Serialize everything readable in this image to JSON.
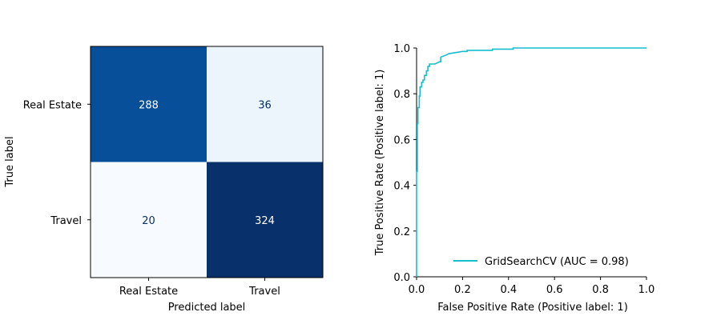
{
  "chart_data": [
    {
      "type": "heatmap",
      "xlabel": "Predicted label",
      "ylabel": "True label",
      "x_categories": [
        "Real Estate",
        "Travel"
      ],
      "y_categories": [
        "Real Estate",
        "Travel"
      ],
      "values": [
        [
          288,
          36
        ],
        [
          20,
          324
        ]
      ],
      "colormap": "Blues",
      "colorbar": false
    },
    {
      "type": "line",
      "xlabel": "False Positive Rate (Positive label: 1)",
      "ylabel": "True Positive Rate (Positive label: 1)",
      "xlim": [
        0,
        1
      ],
      "ylim": [
        0,
        1
      ],
      "xticks": [
        "0.0",
        "0.2",
        "0.4",
        "0.6",
        "0.8",
        "1.0"
      ],
      "yticks": [
        "0.0",
        "0.2",
        "0.4",
        "0.6",
        "0.8",
        "1.0"
      ],
      "grid": false,
      "legend_position": "lower-right",
      "series": [
        {
          "name": "GridSearchCV (AUC = 0.98)",
          "color": "#17becf",
          "x": [
            0.0,
            0.0,
            0.003,
            0.003,
            0.006,
            0.006,
            0.012,
            0.012,
            0.015,
            0.015,
            0.022,
            0.022,
            0.028,
            0.028,
            0.034,
            0.034,
            0.043,
            0.043,
            0.049,
            0.049,
            0.056,
            0.056,
            0.08,
            0.1,
            0.105,
            0.105,
            0.13,
            0.14,
            0.17,
            0.2,
            0.22,
            0.22,
            0.3,
            0.33,
            0.33,
            0.4,
            0.42,
            0.42,
            1.0
          ],
          "y": [
            0.0,
            0.46,
            0.46,
            0.67,
            0.67,
            0.74,
            0.74,
            0.79,
            0.79,
            0.83,
            0.83,
            0.85,
            0.85,
            0.86,
            0.86,
            0.88,
            0.88,
            0.9,
            0.9,
            0.92,
            0.92,
            0.93,
            0.93,
            0.94,
            0.94,
            0.96,
            0.97,
            0.975,
            0.98,
            0.985,
            0.985,
            0.99,
            0.99,
            0.99,
            0.995,
            0.995,
            0.995,
            1.0,
            1.0
          ]
        }
      ]
    }
  ]
}
